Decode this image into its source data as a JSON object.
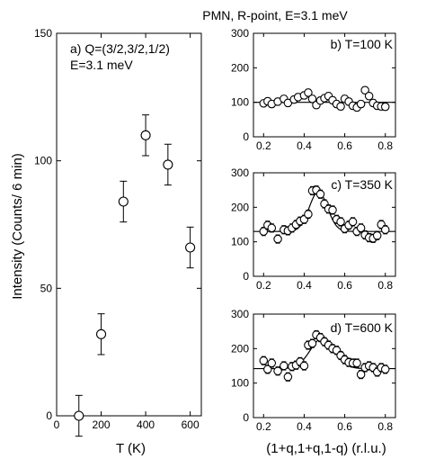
{
  "figure": {
    "title": "PMN, R-point, E=3.1 meV"
  },
  "chart_data": [
    {
      "type": "scatter",
      "panel": "a",
      "annotation_lines": [
        "a) Q=(3/2,3/2,1/2)",
        "E=3.1 meV"
      ],
      "xlabel": "T (K)",
      "ylabel": "Intensity (Counts/ 6 min)",
      "xlim": [
        0,
        650
      ],
      "ylim": [
        0,
        150
      ],
      "xticks": [
        0,
        200,
        400,
        600
      ],
      "yticks": [
        0,
        50,
        100,
        150
      ],
      "grid": false,
      "x": [
        100,
        200,
        300,
        400,
        500,
        600
      ],
      "y": [
        0,
        32,
        84,
        110,
        98.5,
        66
      ],
      "yerr": [
        8,
        8,
        8,
        8,
        8,
        8
      ]
    },
    {
      "type": "scatter",
      "panel": "b",
      "annotation": "b) T=100 K",
      "xlabel": "",
      "ylabel": "",
      "xlim": [
        0.15,
        0.85
      ],
      "ylim": [
        0,
        300
      ],
      "xticks": [
        0.2,
        0.4,
        0.6,
        0.8
      ],
      "yticks": [
        0,
        100,
        200,
        300
      ],
      "grid": false,
      "x": [
        0.2,
        0.22,
        0.24,
        0.27,
        0.3,
        0.32,
        0.35,
        0.37,
        0.4,
        0.42,
        0.44,
        0.46,
        0.48,
        0.5,
        0.52,
        0.54,
        0.56,
        0.58,
        0.6,
        0.62,
        0.64,
        0.66,
        0.68,
        0.7,
        0.72,
        0.74,
        0.76,
        0.78,
        0.8
      ],
      "y": [
        97,
        103,
        95,
        102,
        110,
        98,
        108,
        115,
        120,
        128,
        110,
        92,
        105,
        112,
        118,
        106,
        95,
        88,
        110,
        102,
        90,
        85,
        95,
        135,
        118,
        98,
        90,
        88,
        87
      ],
      "yerr": [
        10,
        10,
        10,
        10,
        10,
        10,
        10,
        10,
        10,
        10,
        10,
        10,
        10,
        10,
        10,
        10,
        10,
        10,
        10,
        10,
        10,
        10,
        10,
        10,
        10,
        10,
        10,
        10,
        10
      ],
      "fit": {
        "background": 100
      }
    },
    {
      "type": "scatter",
      "panel": "c",
      "annotation": "c) T=350 K",
      "xlabel": "",
      "ylabel": "",
      "xlim": [
        0.15,
        0.85
      ],
      "ylim": [
        0,
        300
      ],
      "xticks": [
        0.2,
        0.4,
        0.6,
        0.8
      ],
      "yticks": [
        0,
        100,
        200,
        300
      ],
      "grid": false,
      "x": [
        0.2,
        0.22,
        0.24,
        0.27,
        0.3,
        0.32,
        0.34,
        0.36,
        0.38,
        0.4,
        0.42,
        0.44,
        0.46,
        0.48,
        0.5,
        0.52,
        0.54,
        0.56,
        0.58,
        0.6,
        0.62,
        0.64,
        0.66,
        0.68,
        0.7,
        0.72,
        0.74,
        0.76,
        0.78,
        0.8
      ],
      "y": [
        130,
        148,
        140,
        108,
        135,
        132,
        140,
        150,
        160,
        165,
        180,
        248,
        250,
        238,
        210,
        195,
        192,
        165,
        158,
        138,
        148,
        158,
        130,
        140,
        120,
        112,
        110,
        118,
        150,
        135
      ],
      "yerr": [
        12,
        12,
        12,
        12,
        12,
        12,
        12,
        12,
        12,
        12,
        12,
        12,
        12,
        12,
        12,
        12,
        12,
        12,
        12,
        12,
        12,
        12,
        12,
        12,
        12,
        12,
        12,
        12,
        12,
        12
      ],
      "fit": {
        "background": 130,
        "amplitude": 115,
        "center": 0.47,
        "sigma": 0.045
      }
    },
    {
      "type": "scatter",
      "panel": "d",
      "annotation": "d) T=600 K",
      "xlabel": "(1+q,1+q,1-q) (r.l.u.)",
      "ylabel": "",
      "xlim": [
        0.15,
        0.85
      ],
      "ylim": [
        0,
        300
      ],
      "xticks": [
        0.2,
        0.4,
        0.6,
        0.8
      ],
      "yticks": [
        0,
        100,
        200,
        300
      ],
      "grid": false,
      "x": [
        0.2,
        0.22,
        0.24,
        0.27,
        0.3,
        0.32,
        0.34,
        0.36,
        0.38,
        0.4,
        0.42,
        0.44,
        0.46,
        0.48,
        0.5,
        0.52,
        0.54,
        0.56,
        0.58,
        0.6,
        0.62,
        0.64,
        0.66,
        0.68,
        0.7,
        0.72,
        0.74,
        0.76,
        0.78,
        0.8
      ],
      "y": [
        165,
        140,
        158,
        135,
        150,
        118,
        148,
        152,
        162,
        150,
        210,
        215,
        240,
        232,
        220,
        210,
        200,
        195,
        180,
        168,
        160,
        158,
        158,
        125,
        145,
        150,
        145,
        132,
        145,
        140
      ],
      "yerr": [
        12,
        12,
        12,
        12,
        12,
        12,
        12,
        12,
        12,
        12,
        12,
        12,
        12,
        12,
        12,
        12,
        12,
        12,
        12,
        12,
        12,
        12,
        12,
        12,
        12,
        12,
        12,
        12,
        12,
        12
      ],
      "fit": {
        "background": 142,
        "amplitude": 88,
        "center": 0.49,
        "sigma": 0.06
      }
    }
  ]
}
